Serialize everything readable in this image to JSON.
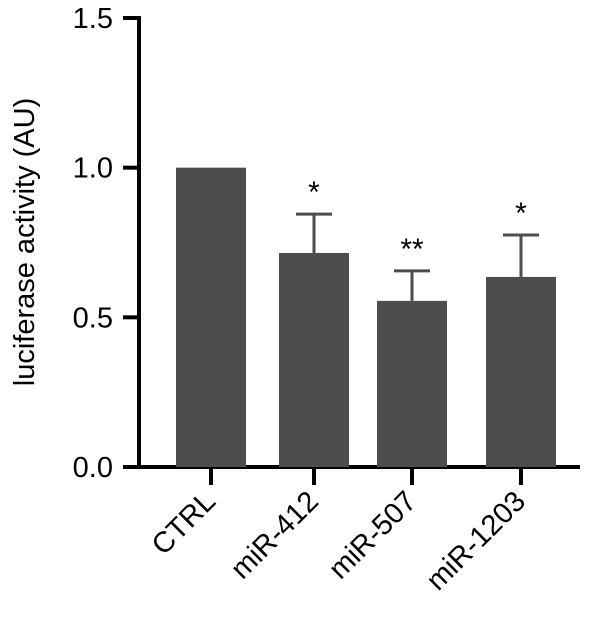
{
  "chart_data": {
    "type": "bar",
    "title": "",
    "xlabel": "",
    "ylabel": "luciferase activity (AU)",
    "categories": [
      "CTRL",
      "miR-412",
      "miR-507",
      "miR-1203"
    ],
    "values": [
      1.0,
      0.715,
      0.555,
      0.635
    ],
    "error_upper": [
      0.0,
      0.13,
      0.1,
      0.14
    ],
    "significance": [
      "",
      "*",
      "**",
      "*"
    ],
    "ylim": [
      0,
      1.5
    ],
    "yticks": [
      0.0,
      0.5,
      1.0,
      1.5
    ],
    "ytick_labels": [
      "0.0",
      "0.5",
      "1.0",
      "1.5"
    ],
    "grid": false,
    "legend": "none",
    "colors": {
      "bar": "#4d4d4d",
      "axis": "#000000",
      "text": "#000000"
    }
  }
}
